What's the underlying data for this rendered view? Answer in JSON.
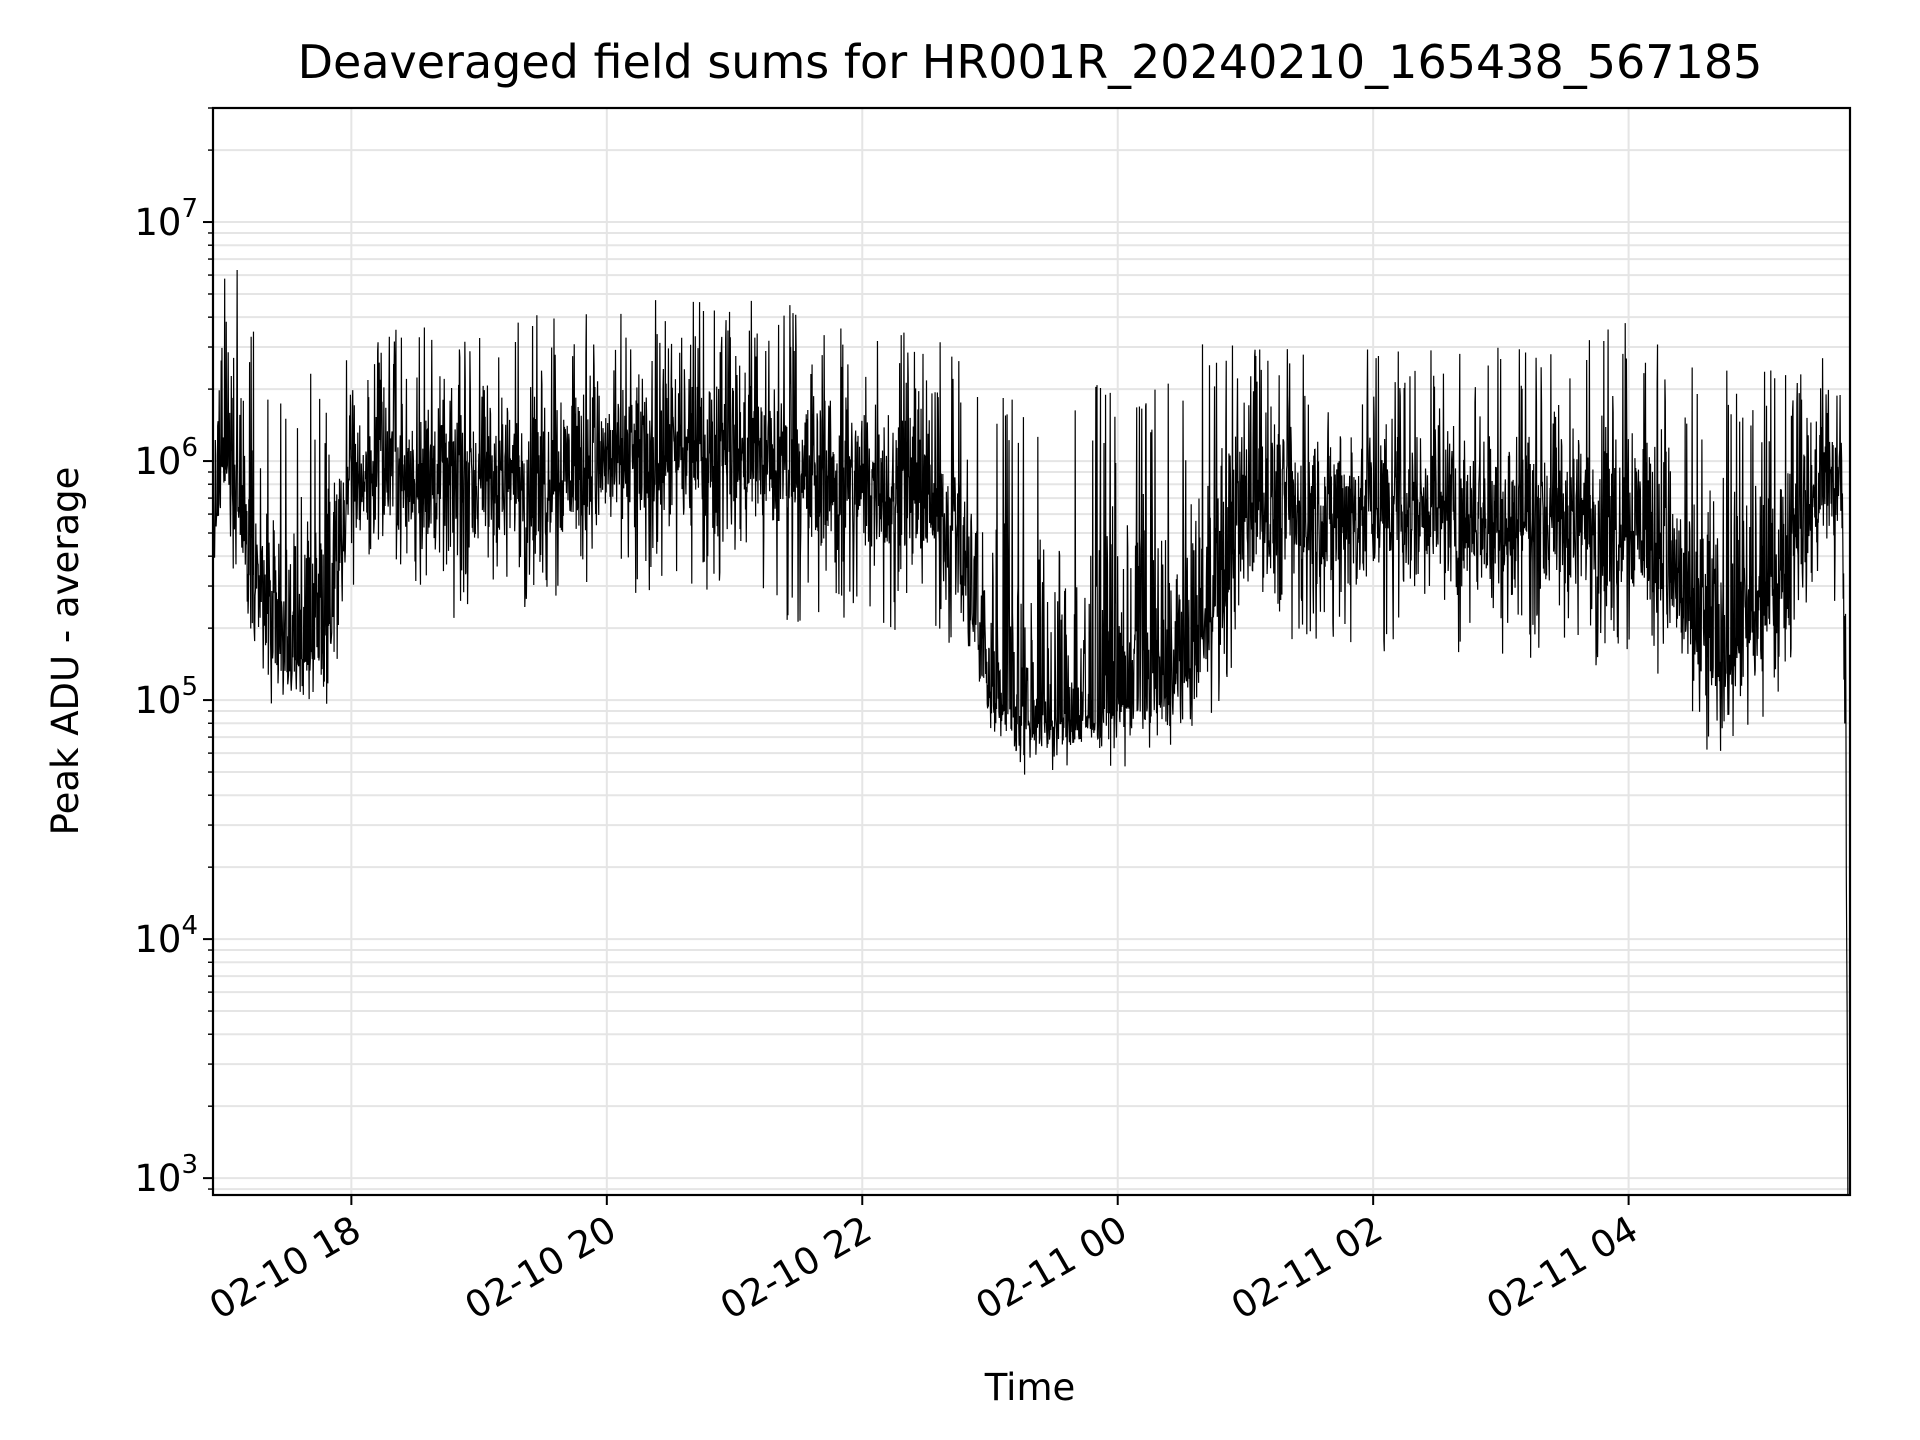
{
  "chart_data": {
    "type": "line",
    "title": "Deaveraged field sums for HR001R_20240210_165438_567185",
    "xlabel": "Time",
    "ylabel": "Peak ADU - average",
    "yscale": "log",
    "ylim": [
      850,
      30000000
    ],
    "xlim": [
      "2024-02-10T16:55:00",
      "2024-02-11T05:44:00"
    ],
    "grid": true,
    "line_color": "#000000",
    "grid_color": "#e5e5e5",
    "x_ticks": [
      {
        "t": "2024-02-10T18:00:00",
        "label": "02-10 18"
      },
      {
        "t": "2024-02-10T20:00:00",
        "label": "02-10 20"
      },
      {
        "t": "2024-02-10T22:00:00",
        "label": "02-10 22"
      },
      {
        "t": "2024-02-11T00:00:00",
        "label": "02-11 00"
      },
      {
        "t": "2024-02-11T02:00:00",
        "label": "02-11 02"
      },
      {
        "t": "2024-02-11T04:00:00",
        "label": "02-11 04"
      }
    ],
    "y_ticks": [
      {
        "value": 1000,
        "base": "10",
        "exp": "3"
      },
      {
        "value": 10000,
        "base": "10",
        "exp": "4"
      },
      {
        "value": 100000,
        "base": "10",
        "exp": "5"
      },
      {
        "value": 1000000,
        "base": "10",
        "exp": "6"
      },
      {
        "value": 10000000,
        "base": "10",
        "exp": "7"
      }
    ],
    "series": [
      {
        "x": [
          "2024-02-10T16:55:00",
          "2024-02-10T17:00:00",
          "2024-02-10T17:05:00",
          "2024-02-10T17:10:00",
          "2024-02-10T17:15:00",
          "2024-02-10T17:20:00",
          "2024-02-10T17:25:00",
          "2024-02-10T17:30:00",
          "2024-02-10T17:35:00",
          "2024-02-10T17:40:00",
          "2024-02-10T17:45:00",
          "2024-02-10T17:50:00",
          "2024-02-10T17:55:00",
          "2024-02-10T18:00:00",
          "2024-02-10T18:15:00",
          "2024-02-10T18:30:00",
          "2024-02-10T18:45:00",
          "2024-02-10T19:00:00",
          "2024-02-10T19:30:00",
          "2024-02-10T20:00:00",
          "2024-02-10T20:30:00",
          "2024-02-10T21:00:00",
          "2024-02-10T21:30:00",
          "2024-02-10T22:00:00",
          "2024-02-10T22:30:00",
          "2024-02-10T22:45:00",
          "2024-02-10T23:00:00",
          "2024-02-10T23:15:00",
          "2024-02-10T23:30:00",
          "2024-02-10T23:45:00",
          "2024-02-11T00:00:00",
          "2024-02-11T00:15:00",
          "2024-02-11T00:30:00",
          "2024-02-11T00:45:00",
          "2024-02-11T01:00:00",
          "2024-02-11T01:30:00",
          "2024-02-11T02:00:00",
          "2024-02-11T02:30:00",
          "2024-02-11T03:00:00",
          "2024-02-11T03:30:00",
          "2024-02-11T04:00:00",
          "2024-02-11T04:15:00",
          "2024-02-11T04:30:00",
          "2024-02-11T04:45:00",
          "2024-02-11T05:00:00",
          "2024-02-11T05:15:00",
          "2024-02-11T05:30:00",
          "2024-02-11T05:40:00",
          "2024-02-11T05:42:00",
          "2024-02-11T05:43:00"
        ],
        "center": [
          500000,
          1000000,
          800000,
          500000,
          350000,
          200000,
          150000,
          140000,
          150000,
          160000,
          180000,
          220000,
          500000,
          800000,
          900000,
          850000,
          800000,
          800000,
          900000,
          1000000,
          1000000,
          1100000,
          900000,
          800000,
          700000,
          450000,
          110000,
          85000,
          80000,
          85000,
          100000,
          110000,
          120000,
          250000,
          650000,
          600000,
          600000,
          650000,
          550000,
          550000,
          600000,
          450000,
          200000,
          150000,
          200000,
          400000,
          800000,
          800000,
          100000,
          1000
        ],
        "min": [
          300000,
          500000,
          250000,
          180000,
          120000,
          90000,
          85000,
          90000,
          95000,
          100000,
          95000,
          90000,
          150000,
          300000,
          300000,
          250000,
          200000,
          200000,
          250000,
          250000,
          300000,
          250000,
          200000,
          180000,
          200000,
          150000,
          60000,
          45000,
          50000,
          50000,
          52000,
          55000,
          65000,
          90000,
          150000,
          150000,
          150000,
          150000,
          150000,
          120000,
          150000,
          100000,
          60000,
          60000,
          70000,
          120000,
          200000,
          200000,
          12000,
          850
        ],
        "max": [
          2000000,
          20000000,
          8000000,
          4000000,
          3500000,
          2500000,
          2000000,
          1800000,
          2200000,
          2500000,
          2800000,
          2500000,
          2400000,
          3000000,
          3500000,
          4000000,
          3500000,
          3500000,
          4500000,
          4000000,
          5000000,
          5000000,
          4500000,
          3500000,
          3500000,
          3000000,
          2000000,
          1800000,
          2000000,
          2200000,
          2000000,
          2200000,
          2500000,
          3500000,
          3500000,
          3000000,
          3000000,
          3000000,
          3000000,
          3000000,
          4300000,
          3000000,
          2500000,
          2400000,
          2500000,
          2700000,
          2800000,
          2800000,
          500000,
          100000
        ]
      }
    ]
  }
}
